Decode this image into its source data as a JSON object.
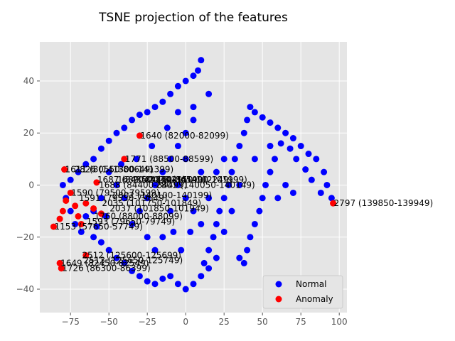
{
  "chart_data": {
    "type": "scatter",
    "title": "TSNE projection of the features",
    "xlabel": "",
    "ylabel": "",
    "xlim": [
      -95,
      105
    ],
    "ylim": [
      -49,
      55
    ],
    "xticks": [
      -75,
      -50,
      -25,
      0,
      25,
      50,
      75,
      100
    ],
    "yticks": [
      -40,
      -20,
      0,
      20,
      40
    ],
    "grid": true,
    "legend_position": "lower-right",
    "series": [
      {
        "name": "Normal",
        "color": "#0000ff",
        "points": [
          [
            10,
            48
          ],
          [
            8,
            44
          ],
          [
            5,
            42
          ],
          [
            0,
            40
          ],
          [
            -5,
            38
          ],
          [
            -10,
            35
          ],
          [
            -15,
            32
          ],
          [
            -20,
            30
          ],
          [
            -25,
            28
          ],
          [
            -30,
            27
          ],
          [
            -35,
            25
          ],
          [
            -40,
            22
          ],
          [
            -45,
            20
          ],
          [
            -50,
            17
          ],
          [
            -55,
            14
          ],
          [
            -60,
            10
          ],
          [
            -65,
            8
          ],
          [
            -70,
            5
          ],
          [
            -75,
            2
          ],
          [
            -80,
            0
          ],
          [
            -78,
            -5
          ],
          [
            -75,
            -10
          ],
          [
            -72,
            -15
          ],
          [
            -68,
            -18
          ],
          [
            -60,
            -20
          ],
          [
            -55,
            -22
          ],
          [
            -50,
            -25
          ],
          [
            -45,
            -28
          ],
          [
            -40,
            -30
          ],
          [
            -35,
            -33
          ],
          [
            -30,
            -35
          ],
          [
            -25,
            -37
          ],
          [
            -20,
            -38
          ],
          [
            -15,
            -36
          ],
          [
            -10,
            -35
          ],
          [
            -5,
            -38
          ],
          [
            0,
            -40
          ],
          [
            5,
            -38
          ],
          [
            10,
            -35
          ],
          [
            12,
            -30
          ],
          [
            15,
            -25
          ],
          [
            18,
            -20
          ],
          [
            20,
            -15
          ],
          [
            22,
            -10
          ],
          [
            25,
            -5
          ],
          [
            28,
            0
          ],
          [
            30,
            5
          ],
          [
            32,
            10
          ],
          [
            35,
            15
          ],
          [
            38,
            20
          ],
          [
            40,
            25
          ],
          [
            42,
            30
          ],
          [
            45,
            28
          ],
          [
            50,
            26
          ],
          [
            55,
            24
          ],
          [
            60,
            22
          ],
          [
            65,
            20
          ],
          [
            70,
            18
          ],
          [
            75,
            15
          ],
          [
            80,
            12
          ],
          [
            85,
            10
          ],
          [
            90,
            5
          ],
          [
            92,
            0
          ],
          [
            95,
            -5
          ],
          [
            88,
            -3
          ],
          [
            82,
            2
          ],
          [
            78,
            6
          ],
          [
            72,
            10
          ],
          [
            68,
            14
          ],
          [
            62,
            16
          ],
          [
            58,
            10
          ],
          [
            55,
            5
          ],
          [
            52,
            0
          ],
          [
            50,
            -5
          ],
          [
            48,
            -10
          ],
          [
            45,
            -15
          ],
          [
            42,
            -20
          ],
          [
            40,
            -25
          ],
          [
            38,
            -30
          ],
          [
            35,
            -28
          ],
          [
            -20,
            0
          ],
          [
            -15,
            5
          ],
          [
            -10,
            10
          ],
          [
            -5,
            15
          ],
          [
            0,
            20
          ],
          [
            5,
            25
          ],
          [
            -25,
            -5
          ],
          [
            -30,
            -10
          ],
          [
            -35,
            -15
          ],
          [
            -40,
            -5
          ],
          [
            -45,
            0
          ],
          [
            -50,
            5
          ],
          [
            -55,
            -5
          ],
          [
            -60,
            -10
          ],
          [
            -65,
            -12
          ],
          [
            -5,
            0
          ],
          [
            0,
            -5
          ],
          [
            5,
            -10
          ],
          [
            10,
            -15
          ],
          [
            15,
            -5
          ],
          [
            20,
            5
          ],
          [
            25,
            10
          ],
          [
            10,
            5
          ],
          [
            0,
            10
          ],
          [
            -10,
            -10
          ],
          [
            -15,
            -20
          ],
          [
            -20,
            -25
          ],
          [
            -25,
            -20
          ],
          [
            5,
            30
          ],
          [
            -5,
            28
          ],
          [
            15,
            35
          ],
          [
            -12,
            22
          ],
          [
            -22,
            15
          ],
          [
            -32,
            10
          ],
          [
            -42,
            8
          ],
          [
            -52,
            -12
          ],
          [
            -58,
            -16
          ],
          [
            60,
            -5
          ],
          [
            65,
            0
          ],
          [
            70,
            -3
          ],
          [
            55,
            15
          ],
          [
            45,
            10
          ],
          [
            35,
            0
          ],
          [
            30,
            -10
          ],
          [
            25,
            -18
          ],
          [
            20,
            -28
          ],
          [
            15,
            -32
          ],
          [
            -3,
            -25
          ],
          [
            -8,
            -18
          ],
          [
            3,
            -18
          ]
        ]
      },
      {
        "name": "Anomaly",
        "color": "#ff0000",
        "points": [
          [
            96,
            -7
          ],
          [
            -30,
            19
          ],
          [
            -40,
            10
          ],
          [
            -79,
            6
          ],
          [
            -58,
            1
          ],
          [
            -75,
            -3
          ],
          [
            -78,
            -6
          ],
          [
            -72,
            -8
          ],
          [
            -65,
            -7
          ],
          [
            -60,
            -9
          ],
          [
            -55,
            -11
          ],
          [
            -80,
            -10
          ],
          [
            -82,
            -13
          ],
          [
            -70,
            -12
          ],
          [
            -68,
            -15
          ],
          [
            -86,
            -16
          ],
          [
            -65,
            -27
          ],
          [
            -82,
            -30
          ],
          [
            -81,
            -32
          ]
        ]
      }
    ],
    "annotations": [
      {
        "text": "2797 (139850-139949)",
        "x": 96,
        "y": -7
      },
      {
        "text": "1640 (82000-82099)",
        "x": -30,
        "y": 19
      },
      {
        "text": "1771 (88500-88599)",
        "x": -40,
        "y": 10
      },
      {
        "text": "1611 (80550-80649)",
        "x": -79,
        "y": 6
      },
      {
        "text": "2826 (141300-141399)",
        "x": -73,
        "y": 6
      },
      {
        "text": "1687 (84350-84449)",
        "x": -58,
        "y": 2
      },
      {
        "text": "1688 (84400-84499)",
        "x": -57,
        "y": 0
      },
      {
        "text": "1689 (84450-84549)",
        "x": -45,
        "y": 2
      },
      {
        "text": "2043 (102150-102249)",
        "x": -35,
        "y": 2
      },
      {
        "text": "2038 (101900-101999)",
        "x": -25,
        "y": 2
      },
      {
        "text": "2801 (140050-140149)",
        "x": -20,
        "y": 0
      },
      {
        "text": "2802 (140100-140199)",
        "x": -48,
        "y": -4
      },
      {
        "text": "1590 (79500-79599)",
        "x": -75,
        "y": -3
      },
      {
        "text": "1591 (79550-79649)",
        "x": -70,
        "y": -5
      },
      {
        "text": "2035 (101750-101849)",
        "x": -55,
        "y": -7
      },
      {
        "text": "2037 (101850-101949)",
        "x": -50,
        "y": -9
      },
      {
        "text": "1760 (88000-88099)",
        "x": -60,
        "y": -12
      },
      {
        "text": "1593 (79650-79749)",
        "x": -65,
        "y": -14
      },
      {
        "text": "1153 (57650-57749)",
        "x": -86,
        "y": -16
      },
      {
        "text": "2512 (125600-125699)",
        "x": -68,
        "y": -27
      },
      {
        "text": "2513 (125650-125749)",
        "x": -67,
        "y": -29
      },
      {
        "text": "1649 (82450-82549)",
        "x": -82,
        "y": -30
      },
      {
        "text": "1726 (86300-86399)",
        "x": -81,
        "y": -32
      }
    ]
  }
}
